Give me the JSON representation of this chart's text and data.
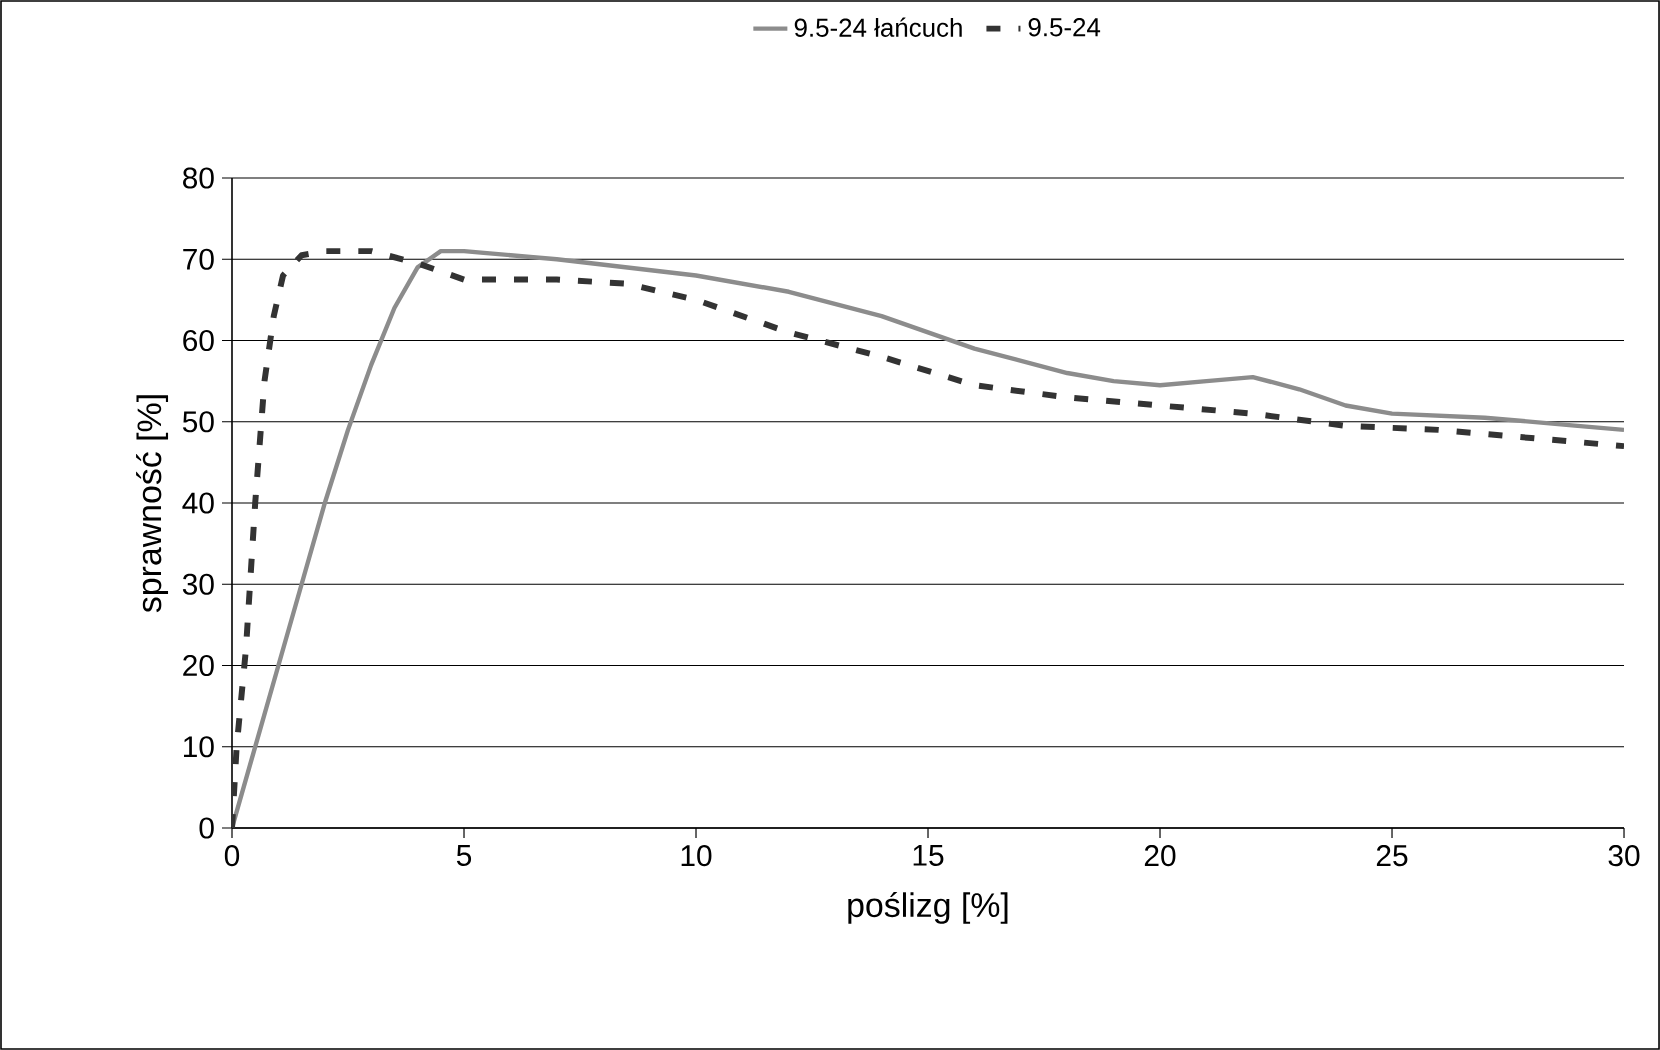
{
  "chart_data": {
    "type": "line",
    "xlabel": "poślizg [%]",
    "ylabel": "sprawność [%]",
    "xlim": [
      0,
      30
    ],
    "xticks": [
      0,
      5,
      10,
      15,
      20,
      25,
      30
    ],
    "ylim": [
      0,
      80
    ],
    "yticks": [
      0,
      10,
      20,
      30,
      40,
      50,
      60,
      70,
      80
    ],
    "grid": "y",
    "legend": "top",
    "marker": "none",
    "series": [
      {
        "name": "9.5-24 łańcuch",
        "color": "#8c8c8c",
        "line_style": "solid",
        "x": [
          0,
          0.5,
          1,
          1.5,
          2,
          2.5,
          3,
          3.5,
          4,
          4.5,
          5,
          7,
          10,
          12,
          14,
          16,
          18,
          19,
          20,
          21,
          22,
          23,
          24,
          25,
          27,
          29,
          30
        ],
        "values": [
          0,
          10,
          20,
          30,
          40,
          49,
          57,
          64,
          69,
          71,
          71,
          70,
          68,
          66,
          63,
          59,
          56,
          55,
          54.5,
          55,
          55.5,
          54,
          52,
          51,
          50.5,
          49.5,
          49
        ]
      },
      {
        "name": "9.5-24",
        "color": "#333333",
        "line_style": "dashed",
        "x": [
          0,
          0.1,
          0.3,
          0.5,
          0.7,
          0.9,
          1.1,
          1.5,
          2,
          3,
          4,
          5,
          7,
          8.5,
          10,
          12,
          14,
          16,
          18,
          20,
          22,
          24,
          26,
          28,
          30
        ],
        "values": [
          0,
          10,
          22,
          40,
          55,
          63,
          68,
          70.5,
          71,
          71,
          69.5,
          67.5,
          67.5,
          67,
          65,
          61,
          58,
          54.5,
          53,
          52,
          51,
          49.5,
          49,
          48,
          47
        ]
      }
    ]
  }
}
